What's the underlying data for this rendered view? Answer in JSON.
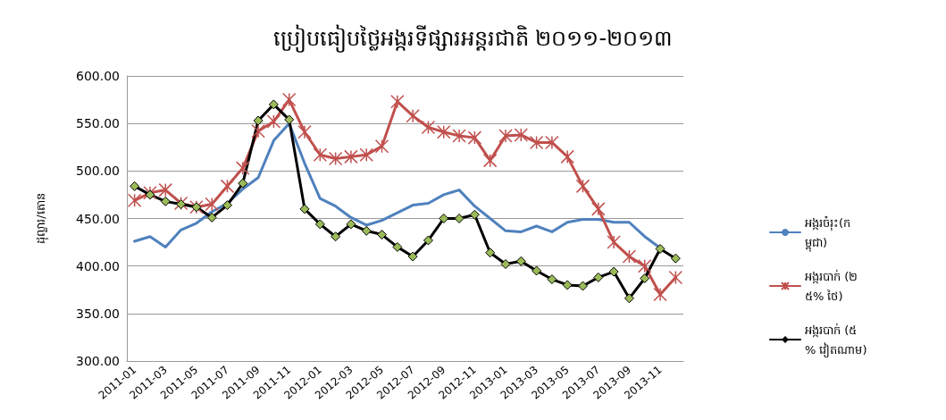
{
  "chart_data": {
    "type": "line",
    "title": "ប្រៀបធៀបថ្លៃអង្ករទីផ្សារអន្តរជាតិ ២០១១-២០១៣",
    "ylabel": "ដុល្លារ/តោន",
    "categories": [
      "2011-01",
      null,
      "2011-03",
      null,
      "2011-05",
      null,
      "2011-07",
      null,
      "2011-09",
      null,
      "2011-11",
      null,
      "2012-01",
      null,
      "2012-03",
      null,
      "2012-05",
      null,
      "2012-07",
      null,
      "2012-09",
      null,
      "2012-11",
      null,
      "2013-01",
      null,
      "2013-03",
      null,
      "2013-05",
      null,
      "2013-07",
      null,
      "2013-09",
      null,
      "2013-11",
      null
    ],
    "series": [
      {
        "name": "អង្ករចំរុះ(កម្ពុជា)",
        "color": "#4f81bd",
        "marker": "none",
        "values": [
          426,
          431,
          420,
          438,
          445,
          457,
          466,
          481,
          493,
          532,
          550,
          508,
          471,
          463,
          451,
          443,
          448,
          456,
          464,
          466,
          475,
          480,
          463,
          450,
          437,
          436,
          442,
          436,
          446,
          449,
          449,
          446,
          446,
          431,
          419,
          null
        ]
      },
      {
        "name": "អង្ករបាក់ (២៥% ថៃ)",
        "color": "#c0504d",
        "marker": "cross",
        "values": [
          469,
          477,
          480,
          466,
          462,
          465,
          484,
          503,
          542,
          552,
          575,
          541,
          517,
          513,
          515,
          517,
          526,
          573,
          558,
          546,
          541,
          537,
          535,
          511,
          537,
          538,
          530,
          530,
          515,
          484,
          460,
          425,
          410,
          400,
          370,
          388
        ]
      },
      {
        "name": "អង្ករបាក់ (៥% វៀតណាម)",
        "color": "#000000",
        "marker": "diamond",
        "colors": [
          "#9bbb59",
          "#9bbb59",
          "#9bbb59",
          "#9bbb59",
          "#9bbb59",
          "#9bbb59",
          "#9bbb59",
          "#9bbb59",
          "#9bbb59",
          "#9bbb59",
          "#9bbb59",
          "#9bbb59",
          "#9bbb59",
          "#9bbb59",
          "#9bbb59",
          "#9bbb59",
          "#9bbb59",
          "#9bbb59",
          "#9bbb59",
          "#9bbb59",
          "#9bbb59",
          "#9bbb59",
          "#9bbb59",
          "#9bbb59",
          "#9bbb59",
          "#9bbb59",
          "#9bbb59",
          "#9bbb59",
          "#9bbb59",
          "#9bbb59",
          "#9bbb59",
          "#9bbb59",
          "#9bbb59",
          "#9bbb59",
          "#9bbb59",
          "#9bbb59"
        ],
        "values": [
          484,
          475,
          468,
          465,
          462,
          451,
          464,
          487,
          553,
          570,
          554,
          460,
          444,
          431,
          444,
          437,
          433,
          420,
          410,
          427,
          450,
          450,
          454,
          414,
          402,
          405,
          395,
          386,
          380,
          379,
          388,
          394,
          366,
          387,
          418,
          408
        ]
      }
    ],
    "ylim": [
      300,
      600
    ],
    "yticks": [
      {
        "value": 300,
        "label": "300.00"
      },
      {
        "value": 350,
        "label": "350.00"
      },
      {
        "value": 400,
        "label": "400.00"
      },
      {
        "value": 450,
        "label": "450.00"
      },
      {
        "value": 500,
        "label": "500.00"
      },
      {
        "value": 550,
        "label": "550.00"
      },
      {
        "value": 600,
        "label": "600.00"
      }
    ],
    "grid": "y",
    "legend": "right",
    "line_style": "solid"
  }
}
